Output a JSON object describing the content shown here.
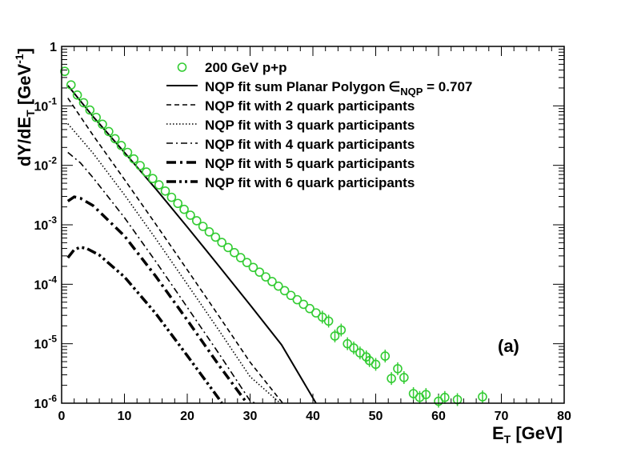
{
  "chart_data": {
    "type": "scatter",
    "xlabel_main": "E",
    "xlabel_sub": "T",
    "xlabel_rest": " [GeV]",
    "ylabel_main": "dY/dE",
    "ylabel_sub": "T",
    "ylabel_rest": " [GeV",
    "ylabel_sup": "-1",
    "ylabel_close": "]",
    "xlim": [
      0,
      80
    ],
    "ylim": [
      1e-06,
      1
    ],
    "yscale": "log",
    "x_ticks": [
      0,
      10,
      20,
      30,
      40,
      50,
      60,
      70,
      80
    ],
    "x_tick_labels": [
      "0",
      "10",
      "20",
      "30",
      "40",
      "50",
      "60",
      "70",
      "80"
    ],
    "y_ticks": [
      {
        "value": 1,
        "base": "1",
        "exp": ""
      },
      {
        "value": 0.1,
        "base": "10",
        "exp": "-1"
      },
      {
        "value": 0.01,
        "base": "10",
        "exp": "-2"
      },
      {
        "value": 0.001,
        "base": "10",
        "exp": "-3"
      },
      {
        "value": 0.0001,
        "base": "10",
        "exp": "-4"
      },
      {
        "value": 1e-05,
        "base": "10",
        "exp": "-5"
      },
      {
        "value": 1e-06,
        "base": "10",
        "exp": "-6"
      }
    ],
    "panel_label": "(a)",
    "legend": {
      "placement": "top-right",
      "entries": [
        {
          "label": "200 GeV p+p",
          "style": "marker"
        },
        {
          "label": "NQP fit sum Planar Polygon",
          "label_extra": "∈",
          "label_extra_sub": "NQP",
          "label_extra_rest": " = 0.707",
          "style": "solid"
        },
        {
          "label": "NQP fit with 2 quark participants",
          "style": "dashed"
        },
        {
          "label": "NQP fit with 3 quark participants",
          "style": "dotted"
        },
        {
          "label": "NQP fit with 4 quark participants",
          "style": "dashdot"
        },
        {
          "label": "NQP fit with 5 quark participants",
          "style": "thickdashdot"
        },
        {
          "label": "NQP fit with 6 quark participants",
          "style": "thickdashdotdot"
        }
      ]
    },
    "colors": {
      "data_marker": "#33cc33",
      "fit": "#000000",
      "frame": "#000000"
    },
    "series_data": {
      "name": "200 GeV p+p",
      "points": [
        {
          "x": 0.5,
          "y": 0.38
        },
        {
          "x": 1.5,
          "y": 0.225
        },
        {
          "x": 2.5,
          "y": 0.152
        },
        {
          "x": 3.5,
          "y": 0.113
        },
        {
          "x": 4.5,
          "y": 0.085
        },
        {
          "x": 5.5,
          "y": 0.064
        },
        {
          "x": 6.5,
          "y": 0.049
        },
        {
          "x": 7.5,
          "y": 0.037
        },
        {
          "x": 8.5,
          "y": 0.028
        },
        {
          "x": 9.5,
          "y": 0.0215
        },
        {
          "x": 10.5,
          "y": 0.0165
        },
        {
          "x": 11.5,
          "y": 0.0128
        },
        {
          "x": 12.5,
          "y": 0.0099
        },
        {
          "x": 13.5,
          "y": 0.0077
        },
        {
          "x": 14.5,
          "y": 0.006
        },
        {
          "x": 15.5,
          "y": 0.0047
        },
        {
          "x": 16.5,
          "y": 0.0037
        },
        {
          "x": 17.5,
          "y": 0.0029
        },
        {
          "x": 18.5,
          "y": 0.00229
        },
        {
          "x": 19.5,
          "y": 0.00182
        },
        {
          "x": 20.5,
          "y": 0.00145
        },
        {
          "x": 21.5,
          "y": 0.00117
        },
        {
          "x": 22.5,
          "y": 0.00094
        },
        {
          "x": 23.5,
          "y": 0.00076
        },
        {
          "x": 24.5,
          "y": 0.00062
        },
        {
          "x": 25.5,
          "y": 0.000505
        },
        {
          "x": 26.5,
          "y": 0.000415
        },
        {
          "x": 27.5,
          "y": 0.00034
        },
        {
          "x": 28.5,
          "y": 0.00028
        },
        {
          "x": 29.5,
          "y": 0.000232
        },
        {
          "x": 30.5,
          "y": 0.000192
        },
        {
          "x": 31.5,
          "y": 0.00016
        },
        {
          "x": 32.5,
          "y": 0.000133
        },
        {
          "x": 33.5,
          "y": 0.000111
        },
        {
          "x": 34.5,
          "y": 9.3e-05
        },
        {
          "x": 35.5,
          "y": 7.8e-05
        },
        {
          "x": 36.5,
          "y": 6.5e-05
        },
        {
          "x": 37.5,
          "y": 5.5e-05
        },
        {
          "x": 38.5,
          "y": 4.6e-05
        },
        {
          "x": 39.5,
          "y": 3.9e-05
        },
        {
          "x": 40.5,
          "y": 3.3e-05
        },
        {
          "x": 41.5,
          "y": 2.8e-05
        },
        {
          "x": 42.5,
          "y": 2.4e-05
        },
        {
          "x": 43.5,
          "y": 1.35e-05
        },
        {
          "x": 44.5,
          "y": 1.7e-05
        },
        {
          "x": 45.5,
          "y": 1e-05
        },
        {
          "x": 46.5,
          "y": 8.5e-06
        },
        {
          "x": 47.5,
          "y": 7e-06
        },
        {
          "x": 48.5,
          "y": 6e-06
        },
        {
          "x": 49.0,
          "y": 5.2e-06
        },
        {
          "x": 50.0,
          "y": 4.5e-06
        },
        {
          "x": 51.5,
          "y": 6.2e-06
        },
        {
          "x": 52.5,
          "y": 2.6e-06
        },
        {
          "x": 53.5,
          "y": 3.8e-06
        },
        {
          "x": 54.5,
          "y": 2.7e-06
        },
        {
          "x": 56.0,
          "y": 1.45e-06
        },
        {
          "x": 57.0,
          "y": 1.25e-06
        },
        {
          "x": 58.0,
          "y": 1.4e-06
        },
        {
          "x": 60.0,
          "y": 1.08e-06
        },
        {
          "x": 61.0,
          "y": 1.25e-06
        },
        {
          "x": 63.0,
          "y": 1.15e-06
        },
        {
          "x": 67.0,
          "y": 1.28e-06
        }
      ]
    },
    "fits": [
      {
        "name": "NQP fit sum Planar Polygon",
        "style": "solid",
        "points": [
          [
            1.0,
            0.22
          ],
          [
            5,
            0.066
          ],
          [
            10,
            0.0165
          ],
          [
            15,
            0.004
          ],
          [
            20,
            0.00092
          ],
          [
            25,
            0.000205
          ],
          [
            30,
            4.5e-05
          ],
          [
            35,
            9.6e-06
          ],
          [
            40.5,
            1e-06
          ]
        ]
      },
      {
        "name": "NQP fit with 2 quark participants",
        "style": "dashed",
        "points": [
          [
            1.0,
            0.135
          ],
          [
            5,
            0.032
          ],
          [
            10,
            0.0058
          ],
          [
            15,
            0.00102
          ],
          [
            20,
            0.000175
          ],
          [
            25,
            2.95e-05
          ],
          [
            30,
            4.9e-06
          ],
          [
            35.2,
            1e-06
          ]
        ]
      },
      {
        "name": "NQP fit with 3 quark participants",
        "style": "dotted",
        "points": [
          [
            1.0,
            0.05
          ],
          [
            5,
            0.016
          ],
          [
            10,
            0.0032
          ],
          [
            15,
            0.00058
          ],
          [
            20,
            0.0001
          ],
          [
            25,
            1.7e-05
          ],
          [
            30,
            2.8e-06
          ],
          [
            34.8,
            1e-06
          ]
        ]
      },
      {
        "name": "NQP fit with 4 quark participants",
        "style": "dashdot",
        "points": [
          [
            1.0,
            0.0165
          ],
          [
            3,
            0.011
          ],
          [
            5,
            0.0062
          ],
          [
            10,
            0.00132
          ],
          [
            15,
            0.00024
          ],
          [
            20,
            4.1e-05
          ],
          [
            25,
            6.9e-06
          ],
          [
            30,
            1.1e-06
          ],
          [
            30.8,
            1e-06
          ]
        ]
      },
      {
        "name": "NQP fit with 5 quark participants",
        "style": "thickdashdot",
        "points": [
          [
            1.0,
            0.0025
          ],
          [
            2,
            0.00295
          ],
          [
            3,
            0.0028
          ],
          [
            5,
            0.0021
          ],
          [
            10,
            0.00065
          ],
          [
            15,
            0.000135
          ],
          [
            20,
            2.5e-05
          ],
          [
            25,
            4.4e-06
          ],
          [
            29.5,
            1e-06
          ]
        ]
      },
      {
        "name": "NQP fit with 6 quark participants",
        "style": "thickdashdotdot",
        "points": [
          [
            1.0,
            0.00028
          ],
          [
            2,
            0.00038
          ],
          [
            3,
            0.00042
          ],
          [
            4,
            0.0004
          ],
          [
            6,
            0.00031
          ],
          [
            10,
            0.000133
          ],
          [
            15,
            3.2e-05
          ],
          [
            20,
            6.3e-06
          ],
          [
            25,
            1.2e-06
          ],
          [
            25.5,
            1e-06
          ]
        ]
      }
    ]
  }
}
